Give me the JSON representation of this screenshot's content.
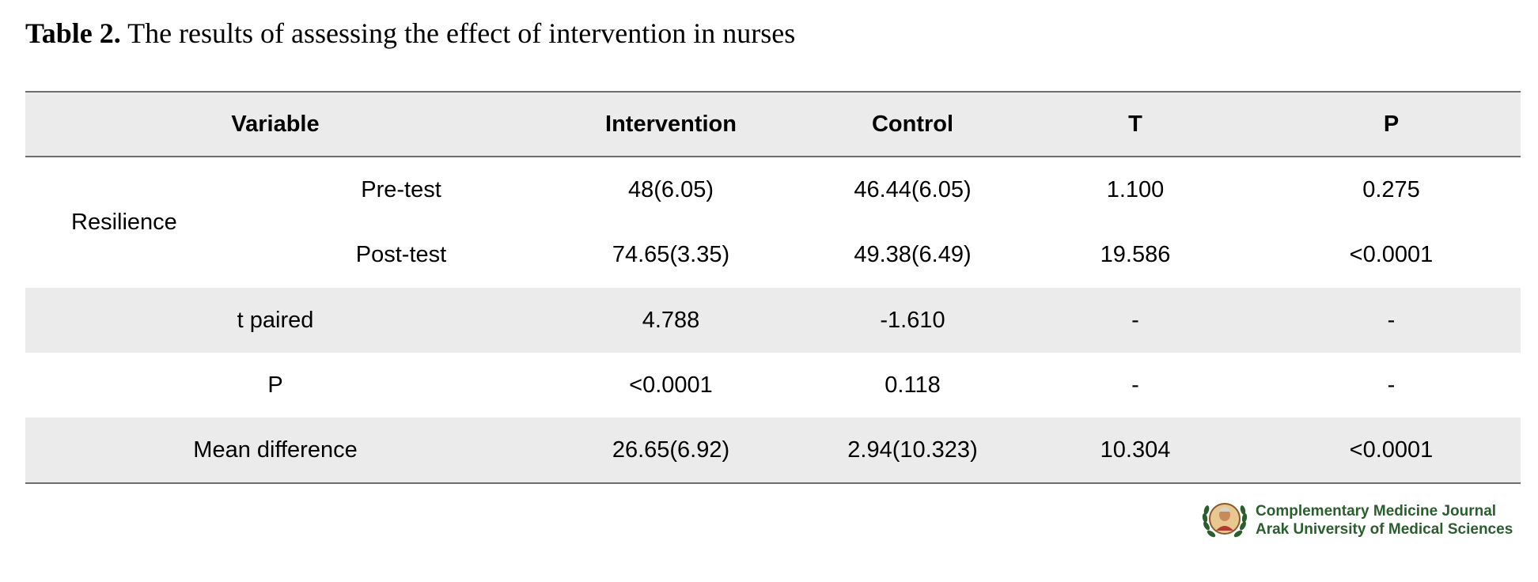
{
  "caption": {
    "label": "Table 2.",
    "text": "The results of assessing the effect of intervention in nurses"
  },
  "table": {
    "headers": [
      "Variable",
      "Intervention",
      "Control",
      "T",
      "P"
    ],
    "resilience": {
      "label": "Resilience",
      "rows": [
        {
          "sub": "Pre-test",
          "intervention": "48(6.05)",
          "control": "46.44(6.05)",
          "t": "1.100",
          "p": "0.275"
        },
        {
          "sub": "Post-test",
          "intervention": "74.65(3.35)",
          "control": "49.38(6.49)",
          "t": "19.586",
          "p": "<0.0001"
        }
      ]
    },
    "rows": [
      {
        "variable": "t paired",
        "intervention": "4.788",
        "control": "-1.610",
        "t": "-",
        "p": "-"
      },
      {
        "variable": "P",
        "intervention": "<0.0001",
        "control": "0.118",
        "t": "-",
        "p": "-"
      },
      {
        "variable": "Mean difference",
        "intervention": "26.65(6.92)",
        "control": "2.94(10.323)",
        "t": "10.304",
        "p": "<0.0001"
      }
    ]
  },
  "footer": {
    "journal": "Complementary Medicine Journal",
    "university": "Arak University of Medical Sciences",
    "logo_icon": "journal-logo-laurel-portrait-icon",
    "brand_color": "#2a5e2e"
  }
}
